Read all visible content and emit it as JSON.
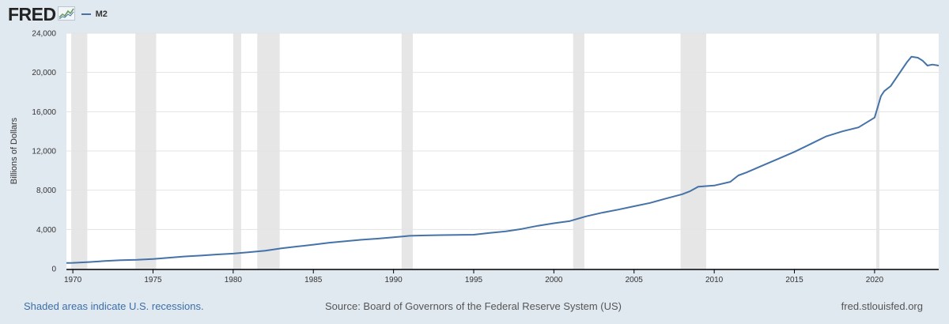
{
  "header": {
    "logo": "FRED",
    "legend_label": "M2"
  },
  "footer": {
    "recessions_note": "Shaded areas indicate U.S. recessions.",
    "source": "Source: Board of Governors of the Federal Reserve System (US)",
    "site": "fred.stlouisfed.org"
  },
  "colors": {
    "series": "#4572a7",
    "recession": "#e6e6e6",
    "background": "#e1e9f0",
    "plot_bg": "#ffffff"
  },
  "chart_data": {
    "type": "line",
    "title": "",
    "xlabel": "",
    "ylabel": "Billions of Dollars",
    "xlim": [
      1969.6,
      2024.0
    ],
    "ylim": [
      0,
      24000
    ],
    "y_ticks": [
      0,
      4000,
      8000,
      12000,
      16000,
      20000,
      24000
    ],
    "y_tick_labels": [
      "0",
      "4,000",
      "8,000",
      "12,000",
      "16,000",
      "20,000",
      "24,000"
    ],
    "x_ticks": [
      1970,
      1975,
      1980,
      1985,
      1990,
      1995,
      2000,
      2005,
      2010,
      2015,
      2020
    ],
    "x_tick_labels": [
      "1970",
      "1975",
      "1980",
      "1985",
      "1990",
      "1995",
      "2000",
      "2005",
      "2010",
      "2015",
      "2020"
    ],
    "grid": true,
    "recessions": [
      [
        1969.9,
        1970.9
      ],
      [
        1973.9,
        1975.2
      ],
      [
        1980.0,
        1980.5
      ],
      [
        1981.5,
        1982.9
      ],
      [
        1990.5,
        1991.2
      ],
      [
        2001.2,
        2001.9
      ],
      [
        2007.9,
        2009.5
      ],
      [
        2020.1,
        2020.3
      ]
    ],
    "series": [
      {
        "name": "M2",
        "x": [
          1969.6,
          1970,
          1971,
          1972,
          1973,
          1974,
          1975,
          1976,
          1977,
          1978,
          1979,
          1980,
          1981,
          1982,
          1983,
          1984,
          1985,
          1986,
          1987,
          1988,
          1989,
          1990,
          1991,
          1992,
          1993,
          1994,
          1995,
          1996,
          1997,
          1998,
          1999,
          2000,
          2001,
          2002,
          2003,
          2004,
          2005,
          2006,
          2007,
          2008,
          2008.5,
          2009,
          2009.5,
          2010,
          2011,
          2011.5,
          2012,
          2013,
          2014,
          2015,
          2016,
          2017,
          2018,
          2019,
          2020.0,
          2020.2,
          2020.4,
          2020.6,
          2021.0,
          2021.5,
          2022.0,
          2022.3,
          2022.7,
          2023.0,
          2023.3,
          2023.6,
          2024.0
        ],
        "values": [
          590,
          600,
          680,
          780,
          860,
          900,
          980,
          1120,
          1250,
          1340,
          1450,
          1540,
          1680,
          1830,
          2080,
          2260,
          2450,
          2650,
          2800,
          2950,
          3060,
          3200,
          3350,
          3390,
          3420,
          3440,
          3460,
          3640,
          3800,
          4050,
          4370,
          4630,
          4860,
          5330,
          5700,
          6020,
          6360,
          6700,
          7150,
          7590,
          7900,
          8360,
          8420,
          8470,
          8850,
          9500,
          9800,
          10500,
          11200,
          11900,
          12700,
          13500,
          14000,
          14400,
          15400,
          16500,
          17600,
          18100,
          18600,
          19800,
          21000,
          21600,
          21500,
          21200,
          20700,
          20800,
          20700
        ]
      }
    ]
  }
}
